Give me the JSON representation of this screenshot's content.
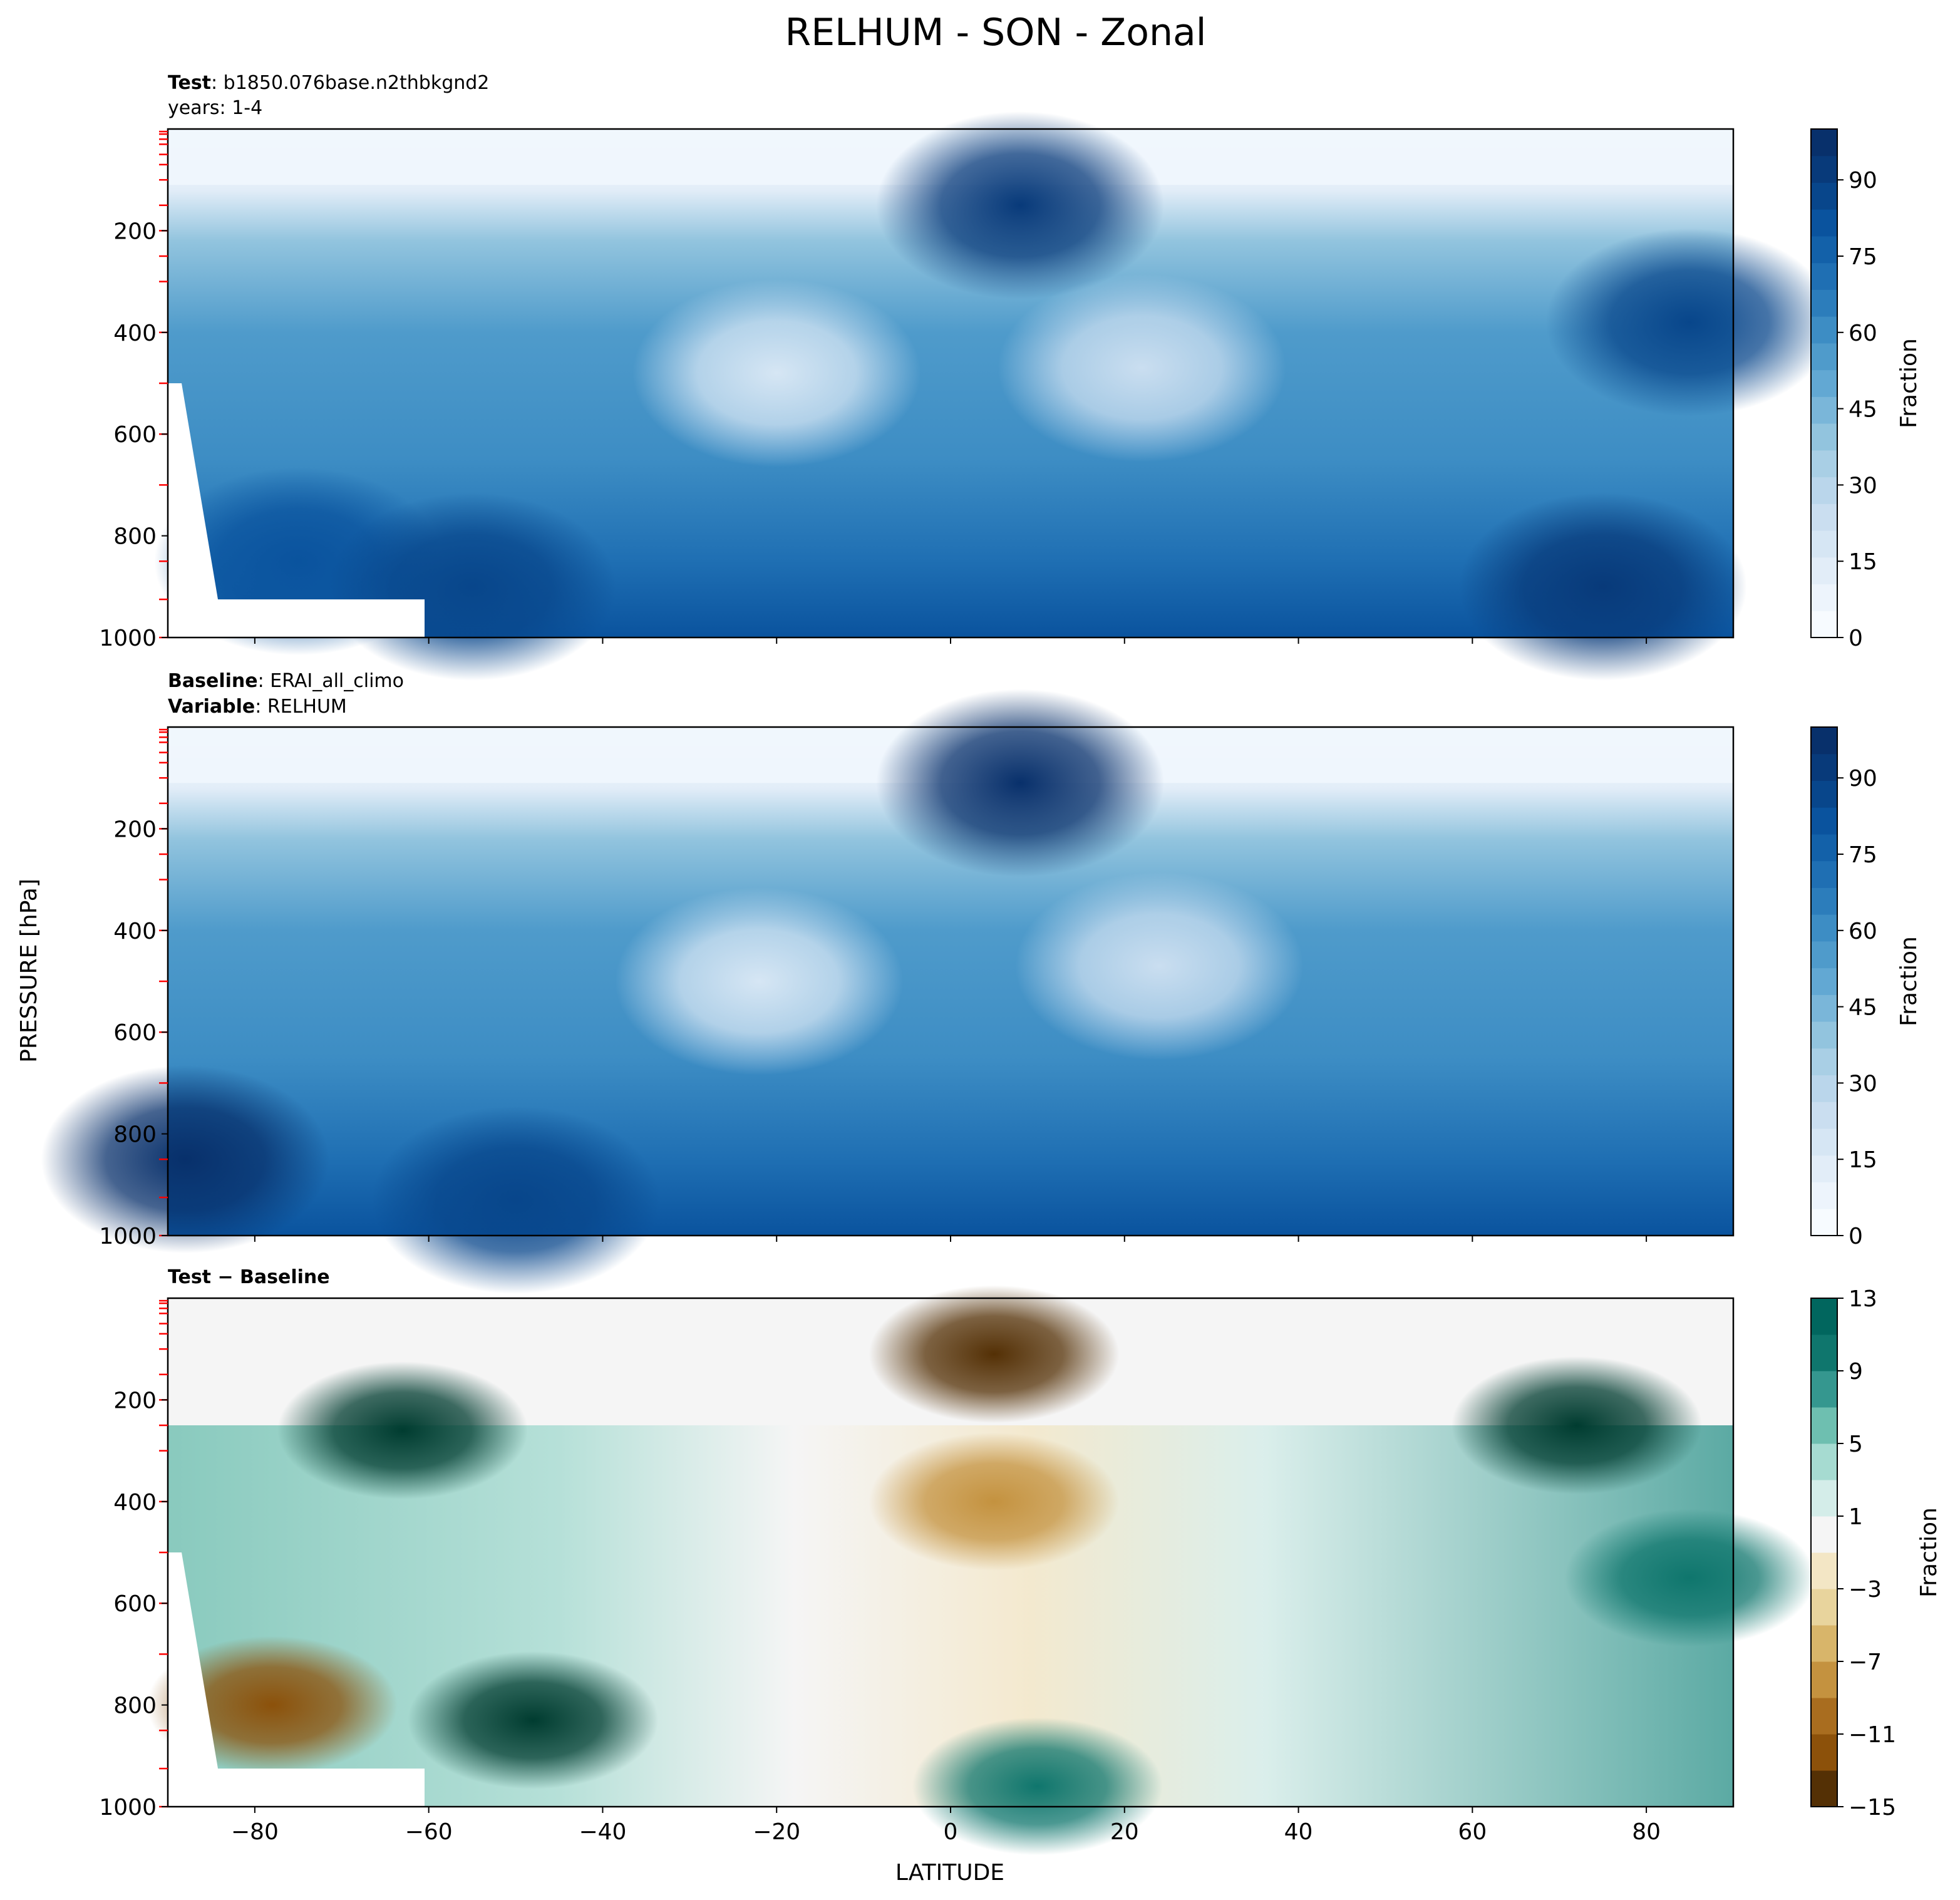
{
  "figure": {
    "title": "RELHUM - SON - Zonal",
    "ylabel": "PRESSURE [hPa]",
    "xlabel": "LATITUDE"
  },
  "colors": {
    "blues": [
      "#f7fbff",
      "#edf4fc",
      "#e2edf8",
      "#d6e6f4",
      "#cadef0",
      "#bad6eb",
      "#a9cfe5",
      "#92c4de",
      "#7ab6d9",
      "#62a8d3",
      "#4f9bcb",
      "#3d8dc4",
      "#2c7dbb",
      "#1f6fb3",
      "#1361a9",
      "#0a539e",
      "#08468b",
      "#083a7a",
      "#08306b"
    ],
    "brbg_neg": [
      "#543005",
      "#8c510a",
      "#a96d1f",
      "#c4923f",
      "#d8b56a",
      "#e8d49d",
      "#f3e6c5",
      "#f5f5f5"
    ],
    "brbg_pos": [
      "#f5f5f5",
      "#d4ede9",
      "#a6dbd1",
      "#6ebfb0",
      "#35978f",
      "#0f766d",
      "#01665e",
      "#003c30"
    ],
    "masked": "#ffffff",
    "marker": "#ff0000"
  },
  "chart_data": [
    {
      "type": "contourf",
      "panel": "test",
      "info_lines": [
        {
          "bold": "Test",
          "text": ": b1850.076base.n2thbkgnd2"
        },
        {
          "bold": "",
          "text": "years: 1-4"
        }
      ],
      "xlim": [
        -90,
        90
      ],
      "ylim": [
        1000,
        5
      ],
      "x_ticks": [
        -80,
        -60,
        -40,
        -20,
        0,
        20,
        40,
        60,
        80
      ],
      "y_ticks": [
        200,
        400,
        600,
        800,
        1000
      ],
      "colorbar": {
        "label": "Fraction",
        "range": [
          0,
          100
        ],
        "ticks": [
          0,
          15,
          30,
          45,
          60,
          75,
          90
        ]
      },
      "features": [
        {
          "lat": 8,
          "p": 150,
          "value": 90
        },
        {
          "lat": -20,
          "p": 480,
          "value": 20
        },
        {
          "lat": 22,
          "p": 470,
          "value": 25
        },
        {
          "lat": 85,
          "p": 380,
          "value": 85
        },
        {
          "lat": -75,
          "p": 850,
          "value": 80
        },
        {
          "lat": -55,
          "p": 900,
          "value": 88
        },
        {
          "lat": 75,
          "p": 900,
          "value": 90
        }
      ]
    },
    {
      "type": "contourf",
      "panel": "baseline",
      "info_lines": [
        {
          "bold": "Baseline",
          "text": ": ERAI_all_climo"
        },
        {
          "bold": "Variable",
          "text": ": RELHUM"
        }
      ],
      "xlim": [
        -90,
        90
      ],
      "ylim": [
        1000,
        5
      ],
      "x_ticks": [
        -80,
        -60,
        -40,
        -20,
        0,
        20,
        40,
        60,
        80
      ],
      "y_ticks": [
        200,
        400,
        600,
        800,
        1000
      ],
      "colorbar": {
        "label": "Fraction",
        "range": [
          0,
          100
        ],
        "ticks": [
          0,
          15,
          30,
          45,
          60,
          75,
          90
        ]
      },
      "features": [
        {
          "lat": 8,
          "p": 110,
          "value": 97
        },
        {
          "lat": -22,
          "p": 500,
          "value": 18
        },
        {
          "lat": 24,
          "p": 470,
          "value": 25
        },
        {
          "lat": -88,
          "p": 850,
          "value": 95
        },
        {
          "lat": -50,
          "p": 930,
          "value": 85
        }
      ]
    },
    {
      "type": "contourf",
      "panel": "difference",
      "info_lines": [
        {
          "bold": "Test − Baseline",
          "text": ""
        }
      ],
      "xlim": [
        -90,
        90
      ],
      "ylim": [
        1000,
        5
      ],
      "x_ticks": [
        -80,
        -60,
        -40,
        -20,
        0,
        20,
        40,
        60,
        80
      ],
      "y_ticks": [
        200,
        400,
        600,
        800,
        1000
      ],
      "colorbar": {
        "label": "Fraction",
        "range": [
          -15,
          13
        ],
        "ticks": [
          13,
          9,
          5,
          1,
          -3,
          -7,
          -11,
          -15
        ]
      },
      "features": [
        {
          "lat": -63,
          "p": 260,
          "value": 14
        },
        {
          "lat": -48,
          "p": 830,
          "value": 14
        },
        {
          "lat": 72,
          "p": 250,
          "value": 14
        },
        {
          "lat": 5,
          "p": 110,
          "value": -15
        },
        {
          "lat": -78,
          "p": 800,
          "value": -12
        },
        {
          "lat": 5,
          "p": 400,
          "value": -8
        },
        {
          "lat": 85,
          "p": 550,
          "value": 10
        },
        {
          "lat": 10,
          "p": 960,
          "value": 9
        }
      ]
    }
  ]
}
